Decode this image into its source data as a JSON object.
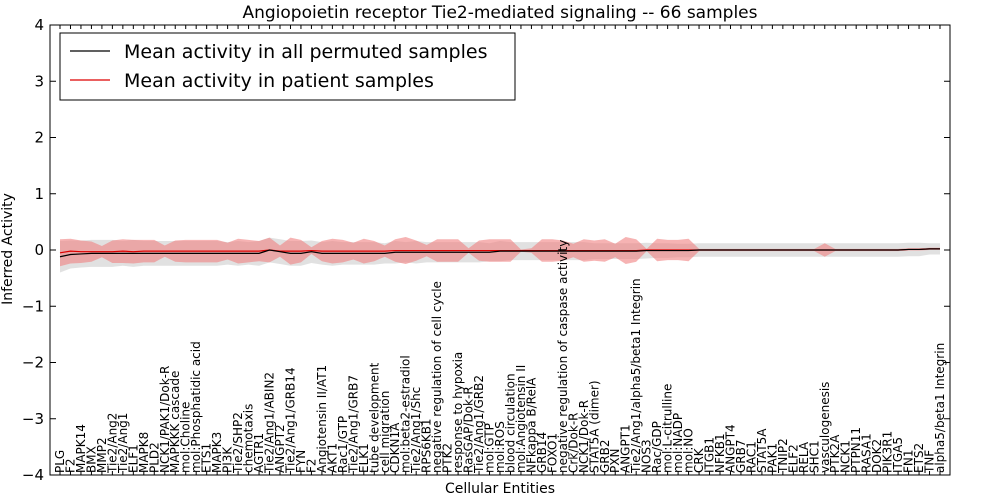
{
  "chart_data": {
    "type": "line",
    "title": "Angiopoietin receptor Tie2-mediated signaling -- 66 samples",
    "xlabel": "Cellular Entities",
    "ylabel": "Inferred Activity",
    "ylim": [
      -4,
      4
    ],
    "yticks": [
      -4,
      -3,
      -2,
      -1,
      0,
      1,
      2,
      3,
      4
    ],
    "grid": false,
    "legend_position": "top-left",
    "colors": {
      "perm_line": "#000000",
      "perm_band": "#c8c8c8",
      "patient_line": "#dd0000",
      "patient_band": "#f08080"
    },
    "categories": [
      "PLG",
      "F2",
      "MAPK14",
      "BMX",
      "MMP2",
      "Tie2/Ang2",
      "Tie2/Ang1",
      "ELF1",
      "MAPK8",
      "PLD2",
      "NCK1/PAK1/Dok-R",
      "MAPKKK cascade",
      "mol:Choline",
      "mol:Phosphatidic acid",
      "ETS1",
      "MAPK3",
      "PI3K",
      "Tie2/SHP2",
      "chemotaxis",
      "AGTR1",
      "Tie2/Ang1/ABIN2",
      "ANGPT2",
      "Tie2/Ang1/GRB14",
      "FYN",
      "F2",
      "Angiotensin II/AT1",
      "AKT1",
      "Rac1/GTP",
      "Tie2/Ang1/GRB7",
      "ELK1",
      "tube development",
      "cell migration",
      "CDKN1A",
      "mol:beta2-estradiol",
      "Tie2/Ang1/Shc",
      "RPS6KB1",
      "negative regulation of cell cycle",
      "PTK2",
      "response to hypoxia",
      "RasGAP/Dok-R",
      "Tie2/Ang1/GRB2",
      "mol:GTP",
      "mol:ROS",
      "blood circulation",
      "mol:Angiotensin II",
      "NFkappa B/RelA",
      "GRB14",
      "FOXO1",
      "negative regulation of caspase activity",
      "Crk/Dok-R",
      "NCK1/Dok-R",
      "STAT5A (dimer)",
      "GRB2",
      "PXN",
      "ANGPT1",
      "Tie2/Ang1/alpha5/beta1 Integrin",
      "NOS3",
      "Rac/GDP",
      "mol:L-citrulline",
      "mol:NADP",
      "mol:NO",
      "CRK",
      "ITGB1",
      "NFKB1",
      "ANGPT4",
      "GRB7",
      "RAC1",
      "STAT5A",
      "PAK1",
      "TNIP2",
      "ELF2",
      "RELA",
      "SHC1",
      "vasculogenesis",
      "PTK2A",
      "NCK1",
      "PTPN11",
      "RASA1",
      "DOK2",
      "PIK3R1",
      "ITGA5",
      "FN1",
      "ETS2",
      "TNF",
      "alpha5/beta1 Integrin"
    ],
    "series": [
      {
        "name": "Mean activity in all permuted samples",
        "mean": [
          -0.12,
          -0.08,
          -0.07,
          -0.06,
          -0.06,
          -0.06,
          -0.06,
          -0.06,
          -0.06,
          -0.06,
          -0.06,
          -0.06,
          -0.06,
          -0.06,
          -0.06,
          -0.06,
          -0.06,
          -0.06,
          -0.06,
          -0.06,
          0.0,
          -0.03,
          -0.06,
          -0.06,
          -0.03,
          -0.06,
          -0.06,
          -0.06,
          -0.06,
          -0.06,
          -0.06,
          -0.06,
          -0.04,
          -0.04,
          -0.04,
          -0.04,
          -0.04,
          -0.04,
          -0.04,
          -0.04,
          -0.04,
          -0.04,
          -0.02,
          -0.02,
          -0.02,
          -0.02,
          -0.02,
          -0.02,
          -0.02,
          -0.02,
          -0.02,
          -0.02,
          -0.02,
          -0.02,
          -0.02,
          -0.02,
          -0.01,
          -0.01,
          -0.01,
          -0.01,
          -0.01,
          0.0,
          0.0,
          0.0,
          0.0,
          0.0,
          0.0,
          0.0,
          0.0,
          0.0,
          0.0,
          0.0,
          0.0,
          0.0,
          0.0,
          0.0,
          0.0,
          0.0,
          0.0,
          0.0,
          0.0,
          0.01,
          0.01,
          0.02,
          0.02
        ],
        "std": [
          0.28,
          0.25,
          0.24,
          0.24,
          0.24,
          0.24,
          0.22,
          0.24,
          0.22,
          0.22,
          0.22,
          0.22,
          0.22,
          0.22,
          0.22,
          0.22,
          0.2,
          0.22,
          0.2,
          0.22,
          0.22,
          0.22,
          0.22,
          0.22,
          0.2,
          0.2,
          0.22,
          0.2,
          0.2,
          0.2,
          0.2,
          0.18,
          0.2,
          0.18,
          0.2,
          0.18,
          0.18,
          0.18,
          0.18,
          0.18,
          0.18,
          0.16,
          0.18,
          0.16,
          0.16,
          0.16,
          0.16,
          0.16,
          0.16,
          0.16,
          0.16,
          0.14,
          0.14,
          0.14,
          0.14,
          0.14,
          0.14,
          0.13,
          0.13,
          0.12,
          0.12,
          0.12,
          0.12,
          0.12,
          0.12,
          0.12,
          0.12,
          0.12,
          0.12,
          0.12,
          0.12,
          0.12,
          0.12,
          0.12,
          0.12,
          0.12,
          0.12,
          0.12,
          0.12,
          0.12,
          0.12,
          0.12,
          0.12,
          0.1,
          0.1
        ]
      },
      {
        "name": "Mean activity in patient samples",
        "mean": [
          -0.05,
          -0.02,
          -0.03,
          -0.03,
          -0.03,
          -0.03,
          -0.02,
          -0.03,
          -0.02,
          -0.02,
          -0.02,
          -0.02,
          -0.02,
          -0.02,
          -0.02,
          -0.02,
          -0.02,
          -0.02,
          -0.02,
          -0.02,
          0.0,
          -0.02,
          -0.02,
          -0.02,
          -0.01,
          -0.02,
          -0.02,
          -0.02,
          -0.02,
          -0.02,
          -0.02,
          -0.02,
          -0.01,
          -0.01,
          -0.01,
          -0.01,
          -0.01,
          -0.01,
          -0.01,
          -0.01,
          -0.01,
          -0.01,
          -0.01,
          -0.01,
          -0.01,
          -0.01,
          -0.01,
          -0.01,
          -0.01,
          -0.01,
          -0.01,
          -0.01,
          -0.01,
          -0.01,
          -0.01,
          -0.01,
          0.0,
          0.0,
          0.0,
          0.0,
          0.0,
          0.0,
          0.0,
          0.0,
          0.0,
          0.0,
          0.0,
          0.0,
          0.0,
          0.0,
          0.0,
          0.0,
          0.0,
          0.0,
          0.0,
          0.0,
          0.0,
          0.0,
          0.0,
          0.0,
          0.0,
          0.01,
          0.01,
          0.02,
          0.02
        ],
        "std": [
          0.24,
          0.22,
          0.2,
          0.18,
          0.1,
          0.2,
          0.21,
          0.21,
          0.2,
          0.2,
          0.1,
          0.19,
          0.2,
          0.2,
          0.2,
          0.2,
          0.15,
          0.22,
          0.2,
          0.18,
          0.22,
          0.1,
          0.24,
          0.2,
          0.06,
          0.18,
          0.22,
          0.2,
          0.15,
          0.22,
          0.18,
          0.1,
          0.2,
          0.24,
          0.18,
          0.1,
          0.2,
          0.2,
          0.2,
          0.04,
          0.18,
          0.2,
          0.2,
          0.2,
          0.02,
          0.04,
          0.2,
          0.2,
          0.18,
          0.12,
          0.2,
          0.18,
          0.2,
          0.12,
          0.24,
          0.2,
          0.02,
          0.2,
          0.18,
          0.18,
          0.2,
          0.02,
          0.02,
          0.02,
          0.02,
          0.02,
          0.02,
          0.02,
          0.02,
          0.02,
          0.02,
          0.02,
          0.02,
          0.12,
          0.02,
          0.02,
          0.02,
          0.02,
          0.02,
          0.02,
          0.02,
          0.02,
          0.02,
          0.02,
          0.02
        ]
      }
    ]
  }
}
